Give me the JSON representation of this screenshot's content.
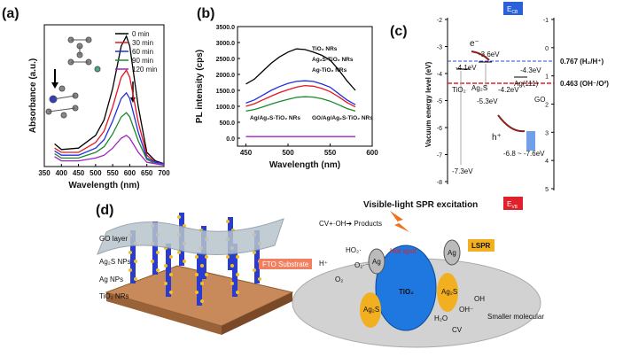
{
  "panel_labels": [
    "(a)",
    "(b)",
    "(c)",
    "(d)"
  ],
  "chart_data": [
    {
      "type": "line",
      "x_label": "Wavelength (nm)",
      "y_label": "Absorbance (a.u.)",
      "x": [
        380,
        400,
        450,
        500,
        525,
        550,
        575,
        590,
        600,
        625,
        650,
        675,
        700
      ],
      "xlim": [
        350,
        700
      ],
      "xticks": [
        350,
        400,
        450,
        500,
        550,
        600,
        650,
        700
      ],
      "ylim": [
        0,
        1
      ],
      "series": [
        {
          "name": "0 min",
          "color": "#000000",
          "values": [
            0.16,
            0.12,
            0.13,
            0.22,
            0.33,
            0.55,
            0.85,
            0.92,
            0.85,
            0.42,
            0.1,
            0.04,
            0.02
          ]
        },
        {
          "name": "30 min",
          "color": "#e8141e",
          "values": [
            0.13,
            0.1,
            0.1,
            0.17,
            0.25,
            0.42,
            0.63,
            0.68,
            0.63,
            0.31,
            0.08,
            0.03,
            0.02
          ]
        },
        {
          "name": "60 min",
          "color": "#1f2fe0",
          "values": [
            0.11,
            0.08,
            0.08,
            0.13,
            0.19,
            0.32,
            0.48,
            0.52,
            0.48,
            0.24,
            0.06,
            0.03,
            0.02
          ]
        },
        {
          "name": "90 min",
          "color": "#1a8a2a",
          "values": [
            0.09,
            0.06,
            0.06,
            0.1,
            0.14,
            0.23,
            0.35,
            0.38,
            0.35,
            0.18,
            0.05,
            0.02,
            0.01
          ]
        },
        {
          "name": "120 min",
          "color": "#a020c8",
          "values": [
            0.07,
            0.04,
            0.04,
            0.06,
            0.08,
            0.13,
            0.2,
            0.22,
            0.2,
            0.1,
            0.03,
            0.02,
            0.01
          ]
        }
      ]
    },
    {
      "type": "line",
      "x_label": "Wavelength (nm)",
      "y_label": "PL intensity (cps)",
      "x": [
        450,
        460,
        470,
        480,
        490,
        500,
        510,
        520,
        530,
        540,
        550,
        560,
        570,
        580
      ],
      "xlim": [
        440,
        600
      ],
      "xticks": [
        450,
        500,
        550,
        600
      ],
      "ylim": [
        -250,
        3500
      ],
      "yticks": [
        {
          "value": 0,
          "label": "0.0"
        },
        {
          "value": 500,
          "label": "500.0"
        },
        {
          "value": 1000,
          "label": "1000.0"
        },
        {
          "value": 1500,
          "label": "1500.0"
        },
        {
          "value": 2000,
          "label": "2000.0"
        },
        {
          "value": 2500,
          "label": "2500.0"
        },
        {
          "value": 3000,
          "label": "3000.0"
        },
        {
          "value": 3500,
          "label": "3500.0"
        }
      ],
      "series": [
        {
          "name": "TiO₂ NRs",
          "color": "#000000",
          "values": [
            1700,
            1850,
            2100,
            2350,
            2550,
            2700,
            2800,
            2780,
            2700,
            2600,
            2450,
            2150,
            1800,
            1500
          ]
        },
        {
          "name": "Ag₂S-TiO₂ NRs",
          "color": "#1f2fe0",
          "values": [
            1100,
            1200,
            1350,
            1500,
            1620,
            1720,
            1780,
            1800,
            1780,
            1700,
            1600,
            1400,
            1200,
            1050
          ]
        },
        {
          "name": "Ag-TiO₂ NRs",
          "color": "#e8141e",
          "values": [
            1000,
            1080,
            1200,
            1320,
            1430,
            1520,
            1600,
            1650,
            1630,
            1560,
            1460,
            1300,
            1120,
            980
          ]
        },
        {
          "name": "Ag/Ag₂S-TiO₂ NRs",
          "color": "#1a8a2a",
          "values": [
            850,
            900,
            980,
            1070,
            1150,
            1220,
            1280,
            1300,
            1290,
            1240,
            1160,
            1050,
            930,
            850
          ]
        },
        {
          "name": "GO/Ag/Ag₂S-TiO₂ NRs",
          "color": "#a020c8",
          "values": [
            50,
            50,
            50,
            50,
            50,
            50,
            50,
            50,
            50,
            50,
            50,
            50,
            50,
            50
          ]
        }
      ]
    }
  ],
  "energy_diagram": {
    "y_label": "Vacuum energy level (eV)",
    "yticks": [
      -2,
      -3,
      -4,
      -5,
      -6,
      -7,
      -8
    ],
    "y2ticks": [
      -1,
      0,
      1,
      2,
      3,
      4,
      5
    ],
    "e_cb": {
      "main": "E",
      "sub": "CB"
    },
    "e_vb": {
      "main": "E",
      "sub": "VB"
    },
    "h2_level": "0.767 (H₂/H⁺)",
    "oh_level": "0.463 (OH⁻/O²)",
    "labels": [
      "-3.6eV",
      "-4.1eV",
      "-4.3eV",
      "-4.2eV",
      "-5.3eV",
      "-7.3eV",
      "-6.8 ~ -7.6eV"
    ],
    "materials": [
      "TiO₂",
      "Ag₂S",
      "Ag(111)",
      "GO"
    ],
    "electron": "e⁻",
    "hole": "h⁺"
  },
  "schematic": {
    "left_labels": [
      "GO layer",
      "Ag₂S NPs",
      "Ag NPs",
      "TiO₂ NRs"
    ],
    "title": "Visible-light SPR excitation",
    "products": "CV+·OH➔ Products",
    "species": [
      "HO₂·",
      "H⁺",
      "O₂·⁻",
      "O₂",
      "Hot spot",
      "LSPR",
      "FTO Substrate",
      "TiO₂",
      "Ag₂S",
      "Ag₂S",
      "Ag",
      "Ag",
      "H₂O",
      "OH",
      "OH⁻",
      "CV",
      "Smaller molecular"
    ]
  }
}
